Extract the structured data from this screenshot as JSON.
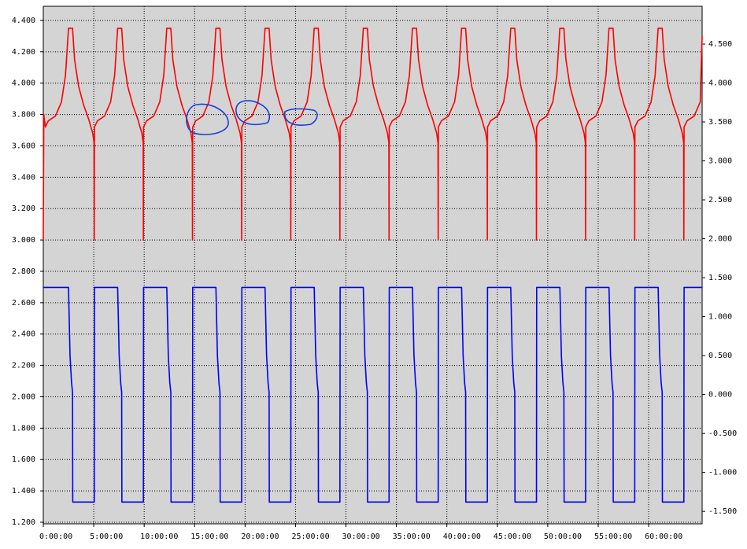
{
  "chart_data": {
    "type": "line",
    "xlim": [
      0,
      65.3
    ],
    "xticks": [
      {
        "value": 0,
        "label": "0:00:00"
      },
      {
        "value": 5,
        "label": "5:00:00"
      },
      {
        "value": 10,
        "label": "10:00:00"
      },
      {
        "value": 15,
        "label": "15:00:00"
      },
      {
        "value": 20,
        "label": "20:00:00"
      },
      {
        "value": 25,
        "label": "25:00:00"
      },
      {
        "value": 30,
        "label": "30:00:00"
      },
      {
        "value": 35,
        "label": "35:00:00"
      },
      {
        "value": 40,
        "label": "40:00:00"
      },
      {
        "value": 45,
        "label": "45:00:00"
      },
      {
        "value": 50,
        "label": "50:00:00"
      },
      {
        "value": 55,
        "label": "55:00:00"
      },
      {
        "value": 60,
        "label": "60:00:00"
      }
    ],
    "ylim": [
      1.19,
      4.49
    ],
    "yticks": [
      {
        "value": 1.2,
        "label": "1.200"
      },
      {
        "value": 1.4,
        "label": "1.400"
      },
      {
        "value": 1.6,
        "label": "1.600"
      },
      {
        "value": 1.8,
        "label": "1.800"
      },
      {
        "value": 2.0,
        "label": "2.000"
      },
      {
        "value": 2.2,
        "label": "2.200"
      },
      {
        "value": 2.4,
        "label": "2.400"
      },
      {
        "value": 2.6,
        "label": "2.600"
      },
      {
        "value": 2.8,
        "label": "2.800"
      },
      {
        "value": 3.0,
        "label": "3.000"
      },
      {
        "value": 3.2,
        "label": "3.200"
      },
      {
        "value": 3.4,
        "label": "3.400"
      },
      {
        "value": 3.6,
        "label": "3.600"
      },
      {
        "value": 3.8,
        "label": "3.800"
      },
      {
        "value": 4.0,
        "label": "4.000"
      },
      {
        "value": 4.2,
        "label": "4.200"
      },
      {
        "value": 4.4,
        "label": "4.400"
      }
    ],
    "y2lim": [
      -1.66,
      4.985
    ],
    "y2ticks": [
      {
        "value": -1.5,
        "label": "-1.500"
      },
      {
        "value": -1.0,
        "label": "-1.000"
      },
      {
        "value": -0.5,
        "label": "-0.500"
      },
      {
        "value": 0,
        "label": "0.000"
      },
      {
        "value": 0.5,
        "label": "0.500"
      },
      {
        "value": 1.0,
        "label": "1.000"
      },
      {
        "value": 1.5,
        "label": "1.500"
      },
      {
        "value": 2.0,
        "label": "2.000"
      },
      {
        "value": 2.5,
        "label": "2.500"
      },
      {
        "value": 3.0,
        "label": "3.000"
      },
      {
        "value": 3.5,
        "label": "3.500"
      },
      {
        "value": 4.0,
        "label": "4.000"
      },
      {
        "value": 4.5,
        "label": "4.500"
      }
    ],
    "grid": true,
    "series": [
      {
        "color": "#ff0000",
        "axis": "y",
        "x": [
          0,
          0.05,
          0.2,
          0.5,
          1.2,
          1.8,
          2.2,
          2.5,
          2.9,
          3.1,
          3.5,
          4.0,
          4.5,
          4.9,
          5.03,
          5.05,
          5.07,
          5.37,
          6.07,
          6.67,
          7.07,
          7.37,
          7.77,
          7.97,
          8.37,
          8.87,
          9.37,
          9.77,
          9.9,
          9.92,
          9.94,
          10.24,
          10.94,
          11.54,
          11.94,
          12.24,
          12.64,
          12.84,
          13.24,
          13.74,
          14.24,
          14.64,
          14.77,
          14.79,
          14.81,
          15.11,
          15.81,
          16.41,
          16.81,
          17.11,
          17.51,
          17.71,
          18.11,
          18.61,
          19.11,
          19.51,
          19.64,
          19.66,
          19.68,
          19.98,
          20.68,
          21.28,
          21.68,
          21.98,
          22.38,
          22.58,
          22.98,
          23.48,
          23.98,
          24.38,
          24.51,
          24.53,
          24.55,
          24.85,
          25.55,
          26.15,
          26.55,
          26.85,
          27.25,
          27.45,
          27.85,
          28.35,
          28.85,
          29.25,
          29.38,
          29.4,
          29.42,
          29.72,
          30.42,
          31.02,
          31.42,
          31.72,
          32.12,
          32.32,
          32.72,
          33.22,
          33.72,
          34.12,
          34.25,
          34.27,
          34.29,
          34.59,
          35.29,
          35.89,
          36.29,
          36.59,
          36.99,
          37.19,
          37.59,
          38.09,
          38.59,
          38.99,
          39.12,
          39.14,
          39.16,
          39.46,
          40.16,
          40.76,
          41.16,
          41.46,
          41.86,
          42.06,
          42.46,
          42.96,
          43.46,
          43.86,
          43.99,
          44.01,
          44.03,
          44.33,
          45.03,
          45.63,
          46.03,
          46.33,
          46.73,
          46.93,
          47.33,
          47.83,
          48.33,
          48.73,
          48.86,
          48.88,
          48.9,
          49.2,
          49.9,
          50.5,
          50.9,
          51.2,
          51.6,
          51.8,
          52.2,
          52.7,
          53.2,
          53.6,
          53.73,
          53.75,
          53.77,
          54.07,
          54.77,
          55.37,
          55.77,
          56.07,
          56.47,
          56.67,
          57.07,
          57.57,
          58.07,
          58.47,
          58.6,
          58.62,
          58.64,
          58.94,
          59.64,
          60.24,
          60.64,
          60.94,
          61.34,
          61.54,
          61.94,
          62.44,
          62.94,
          63.34,
          63.47,
          63.49,
          63.51,
          63.81,
          64.51,
          65.11,
          65.3
        ],
        "values": [
          3.0,
          3.8,
          3.72,
          3.76,
          3.79,
          3.88,
          4.05,
          4.35,
          4.35,
          4.15,
          3.98,
          3.86,
          3.77,
          3.68,
          3.62,
          3.0,
          3.72,
          3.76,
          3.79,
          3.88,
          4.05,
          4.35,
          4.35,
          4.15,
          3.98,
          3.86,
          3.77,
          3.68,
          3.62,
          3.0,
          3.72,
          3.76,
          3.79,
          3.88,
          4.05,
          4.35,
          4.35,
          4.15,
          3.98,
          3.86,
          3.77,
          3.68,
          3.62,
          3.0,
          3.72,
          3.76,
          3.79,
          3.88,
          4.05,
          4.35,
          4.35,
          4.15,
          3.98,
          3.86,
          3.77,
          3.68,
          3.62,
          3.0,
          3.72,
          3.76,
          3.79,
          3.88,
          4.05,
          4.35,
          4.35,
          4.15,
          3.98,
          3.86,
          3.77,
          3.68,
          3.62,
          3.0,
          3.72,
          3.76,
          3.79,
          3.88,
          4.05,
          4.35,
          4.35,
          4.15,
          3.98,
          3.86,
          3.77,
          3.68,
          3.62,
          3.0,
          3.72,
          3.76,
          3.79,
          3.88,
          4.05,
          4.35,
          4.35,
          4.15,
          3.98,
          3.86,
          3.77,
          3.68,
          3.62,
          3.0,
          3.72,
          3.76,
          3.79,
          3.88,
          4.05,
          4.35,
          4.35,
          4.15,
          3.98,
          3.86,
          3.77,
          3.68,
          3.62,
          3.0,
          3.72,
          3.76,
          3.79,
          3.88,
          4.05,
          4.35,
          4.35,
          4.15,
          3.98,
          3.86,
          3.77,
          3.68,
          3.62,
          3.0,
          3.72,
          3.76,
          3.79,
          3.88,
          4.05,
          4.35,
          4.35,
          4.15,
          3.98,
          3.86,
          3.77,
          3.68,
          3.62,
          3.0,
          3.72,
          3.76,
          3.79,
          3.88,
          4.05,
          4.35,
          4.35,
          4.15,
          3.98,
          3.86,
          3.77,
          3.68,
          3.62,
          3.0,
          3.72,
          3.76,
          3.79,
          3.88,
          4.05,
          4.35,
          4.35,
          4.15,
          3.98,
          3.86,
          3.77,
          3.68,
          3.62,
          3.0,
          3.72,
          3.76,
          3.79,
          3.88,
          4.05,
          4.35,
          4.35,
          4.15,
          3.98,
          3.86,
          3.77,
          3.68,
          3.62,
          3.0,
          3.72,
          3.76,
          3.79,
          3.88,
          4.3
        ]
      },
      {
        "color": "#0000ff",
        "axis": "y2",
        "x": [
          0,
          0.2,
          2.5,
          2.65,
          2.8,
          2.9,
          2.92,
          5.05,
          5.07,
          7.37,
          7.52,
          7.67,
          7.77,
          7.79,
          9.92,
          9.94,
          12.24,
          12.39,
          12.54,
          12.64,
          12.66,
          14.79,
          14.81,
          17.11,
          17.26,
          17.41,
          17.51,
          17.53,
          19.66,
          19.68,
          21.98,
          22.13,
          22.28,
          22.38,
          22.4,
          24.53,
          24.55,
          26.85,
          27,
          27.15,
          27.25,
          27.27,
          29.4,
          29.42,
          31.72,
          31.87,
          32.02,
          32.12,
          32.14,
          34.27,
          34.29,
          36.59,
          36.74,
          36.89,
          36.99,
          37.01,
          39.14,
          39.16,
          41.46,
          41.61,
          41.76,
          41.86,
          41.88,
          44.01,
          44.03,
          46.33,
          46.48,
          46.63,
          46.73,
          46.75,
          48.88,
          48.9,
          51.2,
          51.35,
          51.5,
          51.6,
          51.62,
          53.75,
          53.77,
          56.07,
          56.22,
          56.37,
          56.47,
          56.49,
          58.62,
          58.64,
          60.94,
          61.09,
          61.24,
          61.34,
          61.36,
          63.49,
          63.51,
          65.3
        ],
        "values": [
          1.375,
          1.375,
          1.375,
          0.5,
          0.15,
          0.03,
          -1.38,
          -1.38,
          1.375,
          1.375,
          0.5,
          0.15,
          0.03,
          -1.38,
          -1.38,
          1.375,
          1.375,
          0.5,
          0.15,
          0.03,
          -1.38,
          -1.38,
          1.375,
          1.375,
          0.5,
          0.15,
          0.03,
          -1.38,
          -1.38,
          1.375,
          1.375,
          0.5,
          0.15,
          0.03,
          -1.38,
          -1.38,
          1.375,
          1.375,
          0.5,
          0.15,
          0.03,
          -1.38,
          -1.38,
          1.375,
          1.375,
          0.5,
          0.15,
          0.03,
          -1.38,
          -1.38,
          1.375,
          1.375,
          0.5,
          0.15,
          0.03,
          -1.38,
          -1.38,
          1.375,
          1.375,
          0.5,
          0.15,
          0.03,
          -1.38,
          -1.38,
          1.375,
          1.375,
          0.5,
          0.15,
          0.03,
          -1.38,
          -1.38,
          1.375,
          1.375,
          0.5,
          0.15,
          0.03,
          -1.38,
          -1.38,
          1.375,
          1.375,
          0.5,
          0.15,
          0.03,
          -1.38,
          -1.38,
          1.375,
          1.375,
          0.5,
          0.15,
          0.03,
          -1.38,
          -1.38,
          1.375,
          1.375
        ]
      }
    ]
  }
}
